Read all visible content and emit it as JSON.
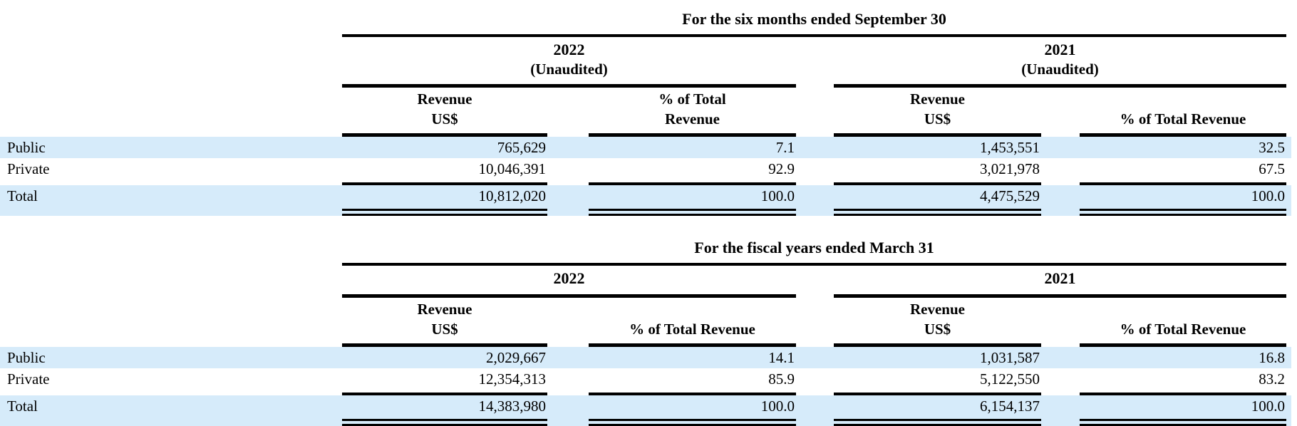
{
  "style": {
    "row_highlight_color": "#d6ebfa",
    "rule_color": "#000000",
    "text_color": "#000000"
  },
  "tables": [
    {
      "title": "For the six months ended September 30",
      "groups": [
        {
          "year": "2022",
          "note": "(Unaudited)"
        },
        {
          "year": "2021",
          "note": "(Unaudited)"
        }
      ],
      "columns": [
        {
          "line1": "Revenue",
          "line2": "US$"
        },
        {
          "line1": "% of Total",
          "line2": "Revenue"
        },
        {
          "line1": "Revenue",
          "line2": "US$"
        },
        {
          "line1": "",
          "line2": "% of Total Revenue"
        }
      ],
      "rows": [
        {
          "label": "Public",
          "values": [
            "765,629",
            "7.1",
            "1,453,551",
            "32.5"
          ],
          "highlight": true
        },
        {
          "label": "Private",
          "values": [
            "10,046,391",
            "92.9",
            "3,021,978",
            "67.5"
          ],
          "highlight": false
        },
        {
          "label": "Total",
          "values": [
            "10,812,020",
            "100.0",
            "4,475,529",
            "100.0"
          ],
          "highlight": true
        }
      ]
    },
    {
      "title": "For the fiscal years ended March 31",
      "groups": [
        {
          "year": "2022",
          "note": ""
        },
        {
          "year": "2021",
          "note": ""
        }
      ],
      "columns": [
        {
          "line1": "Revenue",
          "line2": "US$"
        },
        {
          "line1": "",
          "line2": "% of Total Revenue"
        },
        {
          "line1": "Revenue",
          "line2": "US$"
        },
        {
          "line1": "",
          "line2": "% of Total Revenue"
        }
      ],
      "rows": [
        {
          "label": "Public",
          "values": [
            "2,029,667",
            "14.1",
            "1,031,587",
            "16.8"
          ],
          "highlight": true
        },
        {
          "label": "Private",
          "values": [
            "12,354,313",
            "85.9",
            "5,122,550",
            "83.2"
          ],
          "highlight": false
        },
        {
          "label": "Total",
          "values": [
            "14,383,980",
            "100.0",
            "6,154,137",
            "100.0"
          ],
          "highlight": true
        }
      ]
    }
  ]
}
